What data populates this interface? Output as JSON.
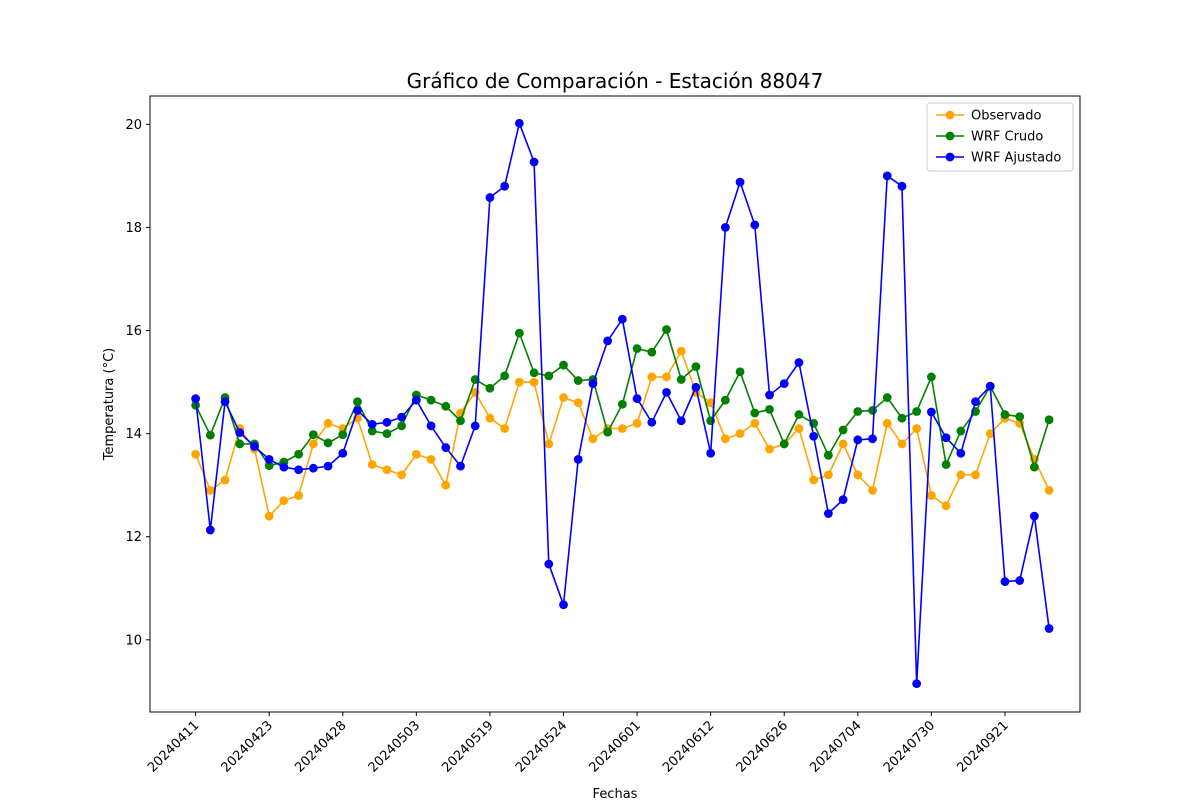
{
  "chart_data": {
    "type": "line",
    "title": "Gráfico de Comparación - Estación 88047",
    "xlabel": "Fechas",
    "ylabel": "Temperatura (°C)",
    "x_tick_labels": [
      "20240411",
      "20240423",
      "20240428",
      "20240503",
      "20240519",
      "20240524",
      "20240601",
      "20240612",
      "20240626",
      "20240704",
      "20240730",
      "20240921"
    ],
    "x_tick_positions": [
      0,
      5,
      10,
      15,
      20,
      25,
      30,
      35,
      40,
      45,
      50,
      55
    ],
    "y_ticks": [
      10,
      12,
      14,
      16,
      18,
      20
    ],
    "ylim": [
      8.6,
      20.55
    ],
    "xlim": [
      -3.1,
      60.1
    ],
    "grid": false,
    "legend_position": "top-right",
    "series": [
      {
        "name": "Observado",
        "color": "#ffa500",
        "values": [
          13.6,
          12.9,
          13.1,
          14.1,
          13.7,
          12.4,
          12.7,
          12.8,
          13.8,
          14.2,
          14.1,
          14.3,
          13.4,
          13.3,
          13.2,
          13.6,
          13.5,
          13.0,
          14.4,
          14.8,
          14.3,
          14.1,
          15.0,
          15.0,
          13.8,
          14.7,
          14.6,
          13.9,
          14.1,
          14.1,
          14.2,
          15.1,
          15.1,
          15.6,
          14.8,
          14.6,
          13.9,
          14.0,
          14.2,
          13.7,
          13.8,
          14.1,
          13.1,
          13.2,
          13.8,
          13.2,
          12.9,
          14.2,
          13.8,
          14.1,
          12.8,
          12.6,
          13.2,
          13.2,
          14.0,
          14.3,
          14.2,
          13.5,
          12.9
        ]
      },
      {
        "name": "WRF Crudo",
        "color": "#008000",
        "values": [
          14.55,
          13.97,
          14.7,
          13.8,
          13.8,
          13.38,
          13.45,
          13.6,
          13.98,
          13.82,
          13.98,
          14.62,
          14.05,
          14.0,
          14.15,
          14.75,
          14.65,
          14.53,
          14.25,
          15.05,
          14.88,
          15.12,
          15.95,
          15.18,
          15.12,
          15.33,
          15.03,
          15.05,
          14.03,
          14.57,
          15.65,
          15.58,
          16.02,
          15.05,
          15.3,
          14.25,
          14.65,
          15.2,
          14.4,
          14.47,
          13.8,
          14.37,
          14.2,
          13.58,
          14.07,
          14.43,
          14.45,
          14.7,
          14.3,
          14.43,
          15.1,
          13.4,
          14.05,
          14.43,
          14.92,
          14.37,
          14.33,
          13.35,
          14.27
        ]
      },
      {
        "name": "WRF Ajustado",
        "color": "#0000ff",
        "values": [
          14.68,
          12.13,
          14.62,
          14.02,
          13.75,
          13.5,
          13.35,
          13.3,
          13.33,
          13.37,
          13.62,
          14.45,
          14.18,
          14.22,
          14.32,
          14.65,
          14.15,
          13.73,
          13.37,
          14.15,
          18.58,
          18.8,
          20.02,
          19.27,
          11.47,
          10.68,
          13.5,
          14.97,
          15.8,
          16.22,
          14.68,
          14.22,
          14.8,
          14.25,
          14.9,
          13.62,
          18.0,
          18.88,
          18.05,
          14.75,
          14.97,
          15.38,
          13.95,
          12.45,
          12.72,
          13.88,
          13.9,
          19.0,
          18.8,
          9.15,
          14.42,
          13.92,
          13.62,
          14.62,
          14.92,
          11.13,
          11.15,
          12.4,
          10.22
        ]
      }
    ]
  }
}
